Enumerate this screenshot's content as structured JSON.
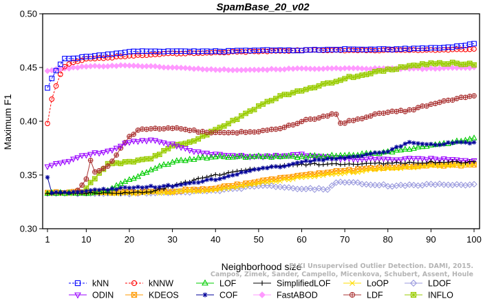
{
  "chart_data": {
    "type": "line",
    "title": "SpamBase_20_v02",
    "xlabel": "Neighborhood size",
    "ylabel": "Maximum F1",
    "xlim": [
      1,
      100
    ],
    "ylim": [
      0.3,
      0.5
    ],
    "xticks": [
      1,
      10,
      20,
      30,
      40,
      50,
      60,
      70,
      80,
      90,
      100
    ],
    "yticks": [
      0.3,
      0.35,
      0.4,
      0.45,
      0.5
    ],
    "xtick_labels": [
      "1",
      "10",
      "20",
      "30",
      "40",
      "50",
      "60",
      "70",
      "80",
      "90",
      "100"
    ],
    "ytick_labels": [
      "0.30",
      "0.35",
      "0.40",
      "0.45",
      "0.50"
    ],
    "grid": false,
    "legend_position": "bottom",
    "series": [
      {
        "name": "kNN",
        "color": "#0000ff",
        "marker": "square",
        "dashed": true,
        "knots": [
          [
            1,
            0.431
          ],
          [
            2,
            0.44
          ],
          [
            3,
            0.447
          ],
          [
            4,
            0.453
          ],
          [
            5,
            0.458
          ],
          [
            8,
            0.459
          ],
          [
            10,
            0.46
          ],
          [
            15,
            0.462
          ],
          [
            20,
            0.465
          ],
          [
            30,
            0.465
          ],
          [
            40,
            0.465
          ],
          [
            50,
            0.466
          ],
          [
            60,
            0.466
          ],
          [
            70,
            0.467
          ],
          [
            80,
            0.467
          ],
          [
            90,
            0.468
          ],
          [
            95,
            0.469
          ],
          [
            100,
            0.472
          ]
        ]
      },
      {
        "name": "kNNW",
        "color": "#ff0000",
        "marker": "circle",
        "dashed": true,
        "knots": [
          [
            1,
            0.398
          ],
          [
            2,
            0.421
          ],
          [
            3,
            0.433
          ],
          [
            4,
            0.444
          ],
          [
            5,
            0.451
          ],
          [
            7,
            0.455
          ],
          [
            10,
            0.458
          ],
          [
            15,
            0.459
          ],
          [
            20,
            0.461
          ],
          [
            30,
            0.463
          ],
          [
            40,
            0.464
          ],
          [
            50,
            0.465
          ],
          [
            60,
            0.466
          ],
          [
            70,
            0.466
          ],
          [
            80,
            0.466
          ],
          [
            90,
            0.466
          ],
          [
            100,
            0.467
          ]
        ]
      },
      {
        "name": "LOF",
        "color": "#00cc00",
        "marker": "triangle-up",
        "dashed": false,
        "knots": [
          [
            1,
            0.333
          ],
          [
            10,
            0.333
          ],
          [
            15,
            0.336
          ],
          [
            20,
            0.345
          ],
          [
            25,
            0.355
          ],
          [
            30,
            0.362
          ],
          [
            35,
            0.365
          ],
          [
            40,
            0.367
          ],
          [
            50,
            0.367
          ],
          [
            60,
            0.367
          ],
          [
            70,
            0.368
          ],
          [
            80,
            0.371
          ],
          [
            90,
            0.377
          ],
          [
            100,
            0.384
          ]
        ]
      },
      {
        "name": "SimplifiedLOF",
        "color": "#000000",
        "marker": "plus",
        "dashed": false,
        "knots": [
          [
            1,
            0.333
          ],
          [
            20,
            0.333
          ],
          [
            25,
            0.334
          ],
          [
            30,
            0.34
          ],
          [
            35,
            0.345
          ],
          [
            40,
            0.35
          ],
          [
            45,
            0.353
          ],
          [
            50,
            0.356
          ],
          [
            55,
            0.358
          ],
          [
            60,
            0.36
          ],
          [
            70,
            0.36
          ],
          [
            80,
            0.361
          ],
          [
            90,
            0.362
          ],
          [
            100,
            0.362
          ]
        ]
      },
      {
        "name": "LoOP",
        "color": "#ffdd00",
        "marker": "x",
        "dashed": false,
        "knots": [
          [
            1,
            0.333
          ],
          [
            20,
            0.333
          ],
          [
            30,
            0.334
          ],
          [
            40,
            0.336
          ],
          [
            50,
            0.342
          ],
          [
            60,
            0.348
          ],
          [
            70,
            0.352
          ],
          [
            80,
            0.356
          ],
          [
            90,
            0.358
          ],
          [
            100,
            0.36
          ]
        ]
      },
      {
        "name": "LDOF",
        "color": "#9999dd",
        "marker": "diamond",
        "dashed": false,
        "knots": [
          [
            1,
            0.333
          ],
          [
            20,
            0.333
          ],
          [
            30,
            0.334
          ],
          [
            40,
            0.335
          ],
          [
            50,
            0.34
          ],
          [
            55,
            0.339
          ],
          [
            60,
            0.337
          ],
          [
            66,
            0.337
          ],
          [
            68,
            0.343
          ],
          [
            75,
            0.342
          ],
          [
            80,
            0.34
          ],
          [
            90,
            0.341
          ],
          [
            100,
            0.341
          ]
        ]
      },
      {
        "name": "ODIN",
        "color": "#9900ff",
        "marker": "triangle-down",
        "dashed": false,
        "knots": [
          [
            1,
            0.358
          ],
          [
            5,
            0.362
          ],
          [
            10,
            0.369
          ],
          [
            15,
            0.372
          ],
          [
            20,
            0.381
          ],
          [
            25,
            0.382
          ],
          [
            30,
            0.379
          ],
          [
            35,
            0.372
          ],
          [
            40,
            0.369
          ],
          [
            50,
            0.367
          ],
          [
            60,
            0.369
          ],
          [
            70,
            0.365
          ],
          [
            80,
            0.365
          ],
          [
            90,
            0.365
          ],
          [
            100,
            0.363
          ]
        ]
      },
      {
        "name": "KDEOS",
        "color": "#ff9900",
        "marker": "square-x",
        "dashed": false,
        "knots": [
          [
            1,
            0.334
          ],
          [
            20,
            0.334
          ],
          [
            30,
            0.335
          ],
          [
            40,
            0.338
          ],
          [
            50,
            0.344
          ],
          [
            60,
            0.35
          ],
          [
            70,
            0.354
          ],
          [
            80,
            0.357
          ],
          [
            90,
            0.359
          ],
          [
            100,
            0.359
          ]
        ]
      },
      {
        "name": "COF",
        "color": "#000099",
        "marker": "asterisk",
        "dashed": false,
        "knots": [
          [
            1,
            0.348
          ],
          [
            2,
            0.333
          ],
          [
            10,
            0.335
          ],
          [
            20,
            0.338
          ],
          [
            30,
            0.34
          ],
          [
            40,
            0.346
          ],
          [
            50,
            0.356
          ],
          [
            55,
            0.358
          ],
          [
            60,
            0.362
          ],
          [
            70,
            0.366
          ],
          [
            80,
            0.372
          ],
          [
            85,
            0.381
          ],
          [
            90,
            0.378
          ],
          [
            95,
            0.38
          ],
          [
            100,
            0.38
          ]
        ]
      },
      {
        "name": "FastABOD",
        "color": "#ff99ff",
        "marker": "diamond-filled",
        "dashed": false,
        "knots": [
          [
            1,
            0.447
          ],
          [
            5,
            0.449
          ],
          [
            10,
            0.451
          ],
          [
            20,
            0.452
          ],
          [
            30,
            0.45
          ],
          [
            40,
            0.448
          ],
          [
            50,
            0.448
          ],
          [
            60,
            0.449
          ],
          [
            70,
            0.449
          ],
          [
            80,
            0.449
          ],
          [
            90,
            0.449
          ],
          [
            100,
            0.45
          ]
        ]
      },
      {
        "name": "LDF",
        "color": "#aa3333",
        "marker": "circle-plus",
        "dashed": false,
        "knots": [
          [
            8,
            0.336
          ],
          [
            9,
            0.341
          ],
          [
            10,
            0.346
          ],
          [
            11,
            0.364
          ],
          [
            12,
            0.352
          ],
          [
            15,
            0.358
          ],
          [
            18,
            0.375
          ],
          [
            20,
            0.385
          ],
          [
            22,
            0.392
          ],
          [
            30,
            0.394
          ],
          [
            35,
            0.391
          ],
          [
            40,
            0.389
          ],
          [
            50,
            0.39
          ],
          [
            55,
            0.393
          ],
          [
            60,
            0.4
          ],
          [
            65,
            0.404
          ],
          [
            68,
            0.407
          ],
          [
            69,
            0.398
          ],
          [
            72,
            0.401
          ],
          [
            75,
            0.404
          ],
          [
            80,
            0.409
          ],
          [
            85,
            0.41
          ],
          [
            90,
            0.416
          ],
          [
            95,
            0.42
          ],
          [
            100,
            0.424
          ]
        ]
      },
      {
        "name": "INFLO",
        "color": "#99cc00",
        "marker": "star-box",
        "dashed": false,
        "knots": [
          [
            10,
            0.338
          ],
          [
            15,
            0.36
          ],
          [
            20,
            0.362
          ],
          [
            25,
            0.365
          ],
          [
            30,
            0.377
          ],
          [
            35,
            0.382
          ],
          [
            40,
            0.392
          ],
          [
            45,
            0.402
          ],
          [
            50,
            0.414
          ],
          [
            55,
            0.423
          ],
          [
            60,
            0.429
          ],
          [
            65,
            0.434
          ],
          [
            70,
            0.44
          ],
          [
            75,
            0.444
          ],
          [
            80,
            0.448
          ],
          [
            85,
            0.451
          ],
          [
            90,
            0.454
          ],
          [
            95,
            0.454
          ],
          [
            100,
            0.453
          ]
        ]
      }
    ]
  },
  "credit": {
    "line1": "ELKI Unsupervised Outlier Detection. DAMI, 2015.",
    "line2": "Campos, Zimek, Sander, Campello, Micenkova, Schubert, Assent, Houle"
  }
}
